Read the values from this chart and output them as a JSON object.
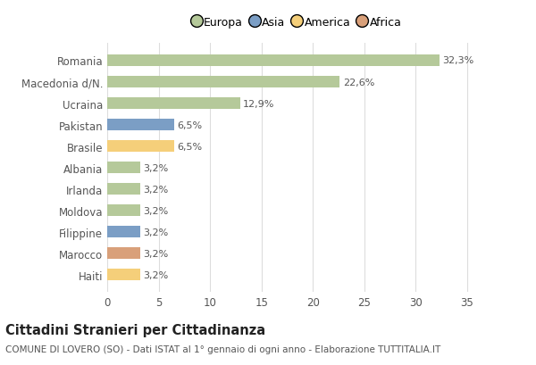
{
  "categories": [
    "Romania",
    "Macedonia d/N.",
    "Ucraina",
    "Pakistan",
    "Brasile",
    "Albania",
    "Irlanda",
    "Moldova",
    "Filippine",
    "Marocco",
    "Haiti"
  ],
  "values": [
    32.3,
    22.6,
    12.9,
    6.5,
    6.5,
    3.2,
    3.2,
    3.2,
    3.2,
    3.2,
    3.2
  ],
  "labels": [
    "32,3%",
    "22,6%",
    "12,9%",
    "6,5%",
    "6,5%",
    "3,2%",
    "3,2%",
    "3,2%",
    "3,2%",
    "3,2%",
    "3,2%"
  ],
  "colors": [
    "#b5c99a",
    "#b5c99a",
    "#b5c99a",
    "#7b9ec5",
    "#f5cf7a",
    "#b5c99a",
    "#b5c99a",
    "#b5c99a",
    "#7b9ec5",
    "#d9a07a",
    "#f5cf7a"
  ],
  "continent_colors": {
    "Europa": "#b5c99a",
    "Asia": "#7b9ec5",
    "America": "#f5cf7a",
    "Africa": "#d9a07a"
  },
  "legend_labels": [
    "Europa",
    "Asia",
    "America",
    "Africa"
  ],
  "title": "Cittadini Stranieri per Cittadinanza",
  "subtitle": "COMUNE DI LOVERO (SO) - Dati ISTAT al 1° gennaio di ogni anno - Elaborazione TUTTITALIA.IT",
  "xlim": [
    0,
    37
  ],
  "xticks": [
    0,
    5,
    10,
    15,
    20,
    25,
    30,
    35
  ],
  "background_color": "#ffffff",
  "plot_bg_color": "#ffffff",
  "grid_color": "#dddddd",
  "title_fontsize": 10.5,
  "subtitle_fontsize": 7.5,
  "label_fontsize": 8,
  "tick_fontsize": 8.5,
  "legend_fontsize": 9
}
